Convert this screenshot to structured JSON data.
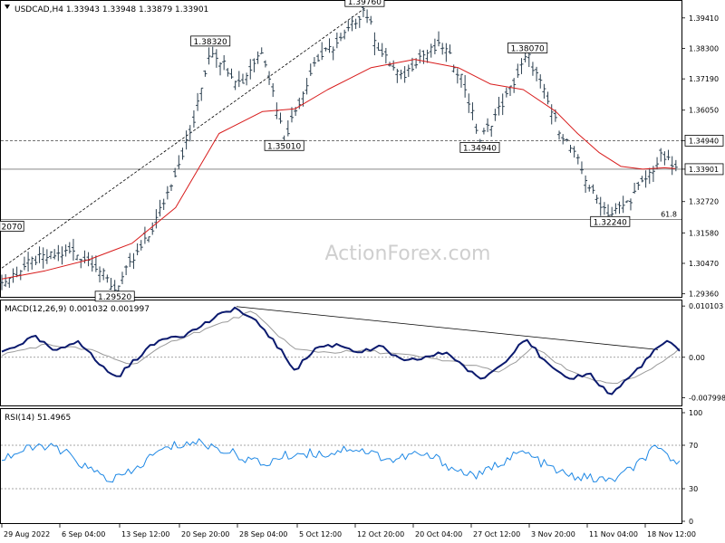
{
  "chart_data": [
    {
      "type": "candlestick",
      "title": "USDCAD,H4  1.33943 1.33948 1.33879 1.33901",
      "watermark": "ActionForex.com",
      "y_ticks": [
        "1.39410",
        "1.38300",
        "1.37190",
        "1.36050",
        "1.34940",
        "1.33901",
        "1.32720",
        "1.31580",
        "1.30470",
        "1.29360"
      ],
      "ylim": [
        1.2925,
        1.4003
      ],
      "x_ticks": [
        "29 Aug 2022",
        "6 Sep 04:00",
        "13 Sep 12:00",
        "20 Sep 20:00",
        "28 Sep 04:00",
        "5 Oct 12:00",
        "12 Oct 20:00",
        "20 Oct 04:00",
        "27 Oct 12:00",
        "3 Nov 20:00",
        "11 Nov 04:00",
        "18 Nov 12:00"
      ],
      "price_path": [
        [
          0,
          1.2975
        ],
        [
          1.5,
          1.306
        ],
        [
          3.2,
          1.309
        ],
        [
          4.2,
          1.305
        ],
        [
          5.2,
          1.2953
        ],
        [
          6.8,
          1.315
        ],
        [
          7.6,
          1.33
        ],
        [
          8.8,
          1.355
        ],
        [
          9.6,
          1.3832
        ],
        [
          11.0,
          1.37
        ],
        [
          12.0,
          1.383
        ],
        [
          13.0,
          1.3501
        ],
        [
          14.4,
          1.378
        ],
        [
          15.6,
          1.386
        ],
        [
          16.7,
          1.3976
        ],
        [
          17.4,
          1.382
        ],
        [
          18.4,
          1.372
        ],
        [
          19.2,
          1.38
        ],
        [
          20.3,
          1.384
        ],
        [
          21.2,
          1.372
        ],
        [
          22.0,
          1.3494
        ],
        [
          23.2,
          1.365
        ],
        [
          24.2,
          1.3807
        ],
        [
          24.8,
          1.37
        ],
        [
          25.5,
          1.356
        ],
        [
          26.5,
          1.342
        ],
        [
          27.2,
          1.33
        ],
        [
          28.0,
          1.3224
        ],
        [
          28.8,
          1.327
        ],
        [
          29.6,
          1.335
        ],
        [
          30.4,
          1.344
        ],
        [
          31.0,
          1.339
        ]
      ],
      "moving_average": [
        [
          0,
          1.299
        ],
        [
          2,
          1.302
        ],
        [
          4,
          1.306
        ],
        [
          6,
          1.312
        ],
        [
          8,
          1.325
        ],
        [
          10,
          1.352
        ],
        [
          12,
          1.36
        ],
        [
          13.5,
          1.361
        ],
        [
          15,
          1.368
        ],
        [
          17,
          1.376
        ],
        [
          19,
          1.379
        ],
        [
          21,
          1.376
        ],
        [
          22.5,
          1.37
        ],
        [
          24,
          1.368
        ],
        [
          25.5,
          1.36
        ],
        [
          26.5,
          1.352
        ],
        [
          27.5,
          1.345
        ],
        [
          28.5,
          1.34
        ],
        [
          29.5,
          1.339
        ],
        [
          30.5,
          1.3395
        ],
        [
          31,
          1.3392
        ]
      ],
      "annotations": [
        {
          "text": "1.39760",
          "x": 16.7,
          "y": 1.3976
        },
        {
          "text": "1.38320",
          "x": 9.6,
          "y": 1.3832
        },
        {
          "text": "1.35010",
          "x": 13.0,
          "y": 1.3501
        },
        {
          "text": "1.38070",
          "x": 24.2,
          "y": 1.3807
        },
        {
          "text": "1.34940",
          "x": 22.0,
          "y": 1.3494
        },
        {
          "text": "1.32240",
          "x": 28.0,
          "y": 1.3224
        },
        {
          "text": "1.29520",
          "x": 5.2,
          "y": 1.2952
        },
        {
          "text": "2070",
          "x": 0.9,
          "y": 1.3207
        },
        {
          "text": "61.8",
          "x": 30.9,
          "y": 1.3207
        }
      ],
      "levels": [
        {
          "value": 1.3494,
          "style": "dashed",
          "label": "1.34940"
        },
        {
          "value": 1.339,
          "style": "solid",
          "label": "1.33901"
        },
        {
          "value": 1.3207,
          "style": "solid",
          "label": "61.8"
        }
      ],
      "trendline": {
        "from": [
          0,
          1.303
        ],
        "to": [
          16.7,
          1.3976
        ],
        "style": "dashed"
      }
    },
    {
      "type": "line",
      "title": "MACD(12,26,9) 0.001032 0.001997",
      "y_ticks": [
        "0.010103",
        "0.00",
        "-0.007998"
      ],
      "ylim": [
        -0.0095,
        0.0112
      ],
      "macd_path": [
        [
          0,
          0.001
        ],
        [
          1.5,
          0.004
        ],
        [
          2.5,
          0.001
        ],
        [
          3.5,
          0.0035
        ],
        [
          4.5,
          -0.0015
        ],
        [
          5.3,
          -0.004
        ],
        [
          6.5,
          0.001
        ],
        [
          7.5,
          0.004
        ],
        [
          8.5,
          0.0045
        ],
        [
          9.5,
          0.007
        ],
        [
          10.7,
          0.0098
        ],
        [
          12.0,
          0.006
        ],
        [
          13.5,
          -0.0025
        ],
        [
          14.5,
          0.002
        ],
        [
          15.5,
          0.0025
        ],
        [
          16.5,
          0.001
        ],
        [
          17.5,
          0.002
        ],
        [
          18.5,
          -0.001
        ],
        [
          19.5,
          0.0
        ],
        [
          20.5,
          0.001
        ],
        [
          22.0,
          -0.0045
        ],
        [
          23.0,
          -0.0015
        ],
        [
          24.1,
          0.004
        ],
        [
          25.0,
          -0.001
        ],
        [
          26.0,
          -0.0045
        ],
        [
          27.0,
          -0.003
        ],
        [
          28.0,
          -0.0075
        ],
        [
          29.0,
          -0.0035
        ],
        [
          30.0,
          0.001
        ],
        [
          30.6,
          0.0033
        ],
        [
          31.2,
          0.001
        ]
      ],
      "signal_path": [
        [
          0,
          0.0005
        ],
        [
          2,
          0.0025
        ],
        [
          4,
          0.0015
        ],
        [
          6,
          -0.0015
        ],
        [
          8,
          0.0035
        ],
        [
          10,
          0.0065
        ],
        [
          11.5,
          0.009
        ],
        [
          13.5,
          0.0015
        ],
        [
          15,
          0.001
        ],
        [
          17,
          0.0012
        ],
        [
          19,
          0.0002
        ],
        [
          21,
          -0.001
        ],
        [
          23,
          -0.003
        ],
        [
          24.5,
          0.002
        ],
        [
          26,
          -0.0025
        ],
        [
          28,
          -0.0055
        ],
        [
          29.5,
          -0.0035
        ],
        [
          31.2,
          0.0018
        ]
      ],
      "trendline": {
        "from": [
          10.8,
          0.01
        ],
        "to": [
          30.2,
          0.0015
        ]
      }
    },
    {
      "type": "line",
      "title": "RSI(14) 51.4965",
      "y_ticks": [
        "100",
        "70",
        "30",
        "0"
      ],
      "ylim": [
        0,
        100
      ],
      "levels": [
        70,
        30
      ],
      "rsi_path": [
        [
          0,
          58
        ],
        [
          1,
          65
        ],
        [
          2,
          70
        ],
        [
          3,
          62
        ],
        [
          4,
          48
        ],
        [
          5,
          38
        ],
        [
          6,
          45
        ],
        [
          7,
          62
        ],
        [
          8,
          70
        ],
        [
          9,
          73
        ],
        [
          10,
          67
        ],
        [
          11,
          60
        ],
        [
          12,
          52
        ],
        [
          13,
          60
        ],
        [
          14,
          63
        ],
        [
          15,
          62
        ],
        [
          16,
          68
        ],
        [
          17,
          63
        ],
        [
          18,
          56
        ],
        [
          19,
          62
        ],
        [
          20,
          58
        ],
        [
          21,
          46
        ],
        [
          22,
          42
        ],
        [
          23,
          55
        ],
        [
          24,
          64
        ],
        [
          25,
          52
        ],
        [
          26,
          42
        ],
        [
          27,
          40
        ],
        [
          28,
          37
        ],
        [
          29,
          48
        ],
        [
          30,
          66
        ],
        [
          30.6,
          62
        ],
        [
          31.2,
          51.5
        ]
      ]
    }
  ]
}
